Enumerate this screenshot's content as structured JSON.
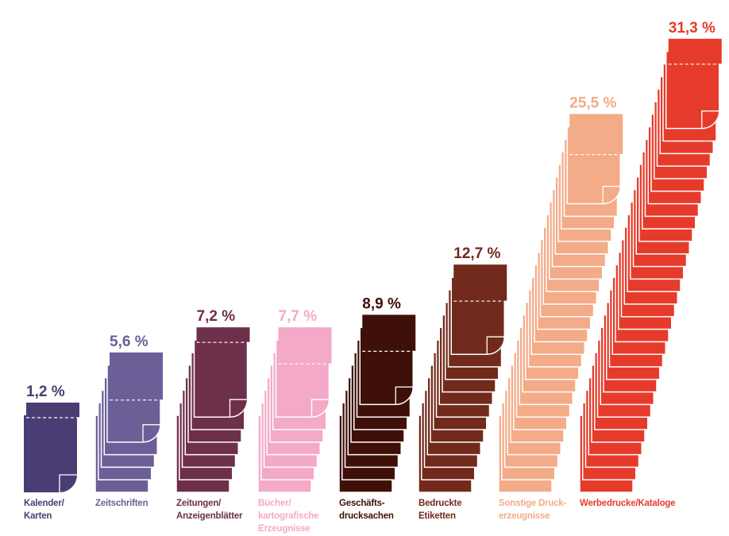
{
  "chart_data": {
    "type": "bar",
    "unit": "%",
    "categories": [
      "Kalender/\nKarten",
      "Zeitschriften",
      "Zeitungen/\nAnzeigenblätter",
      "Bücher/\nkartografische\nErzeugnisse",
      "Geschäfts-\ndrucksachen",
      "Bedruckte\nEtiketten",
      "Sonstige Druck-\nerzeugnisse",
      "Werbedrucke/Kataloge"
    ],
    "values": [
      1.2,
      5.6,
      7.2,
      7.7,
      8.9,
      12.7,
      25.5,
      31.3
    ],
    "value_labels": [
      "1,2 %",
      "5,6 %",
      "7,2 %",
      "7,7 %",
      "8,9 %",
      "12,7 %",
      "25,5 %",
      "31,3 %"
    ],
    "colors": [
      "#4a3d73",
      "#6c5f98",
      "#6e2f4a",
      "#f4a9c8",
      "#3f1008",
      "#722a1c",
      "#f4ab88",
      "#e63b2b"
    ],
    "label_colors": [
      "#4a3d73",
      "#6c5f98",
      "#6e2f4a",
      "#f4a9c8",
      "#3f1008",
      "#722a1c",
      "#f4ab88",
      "#e63b2b"
    ]
  }
}
